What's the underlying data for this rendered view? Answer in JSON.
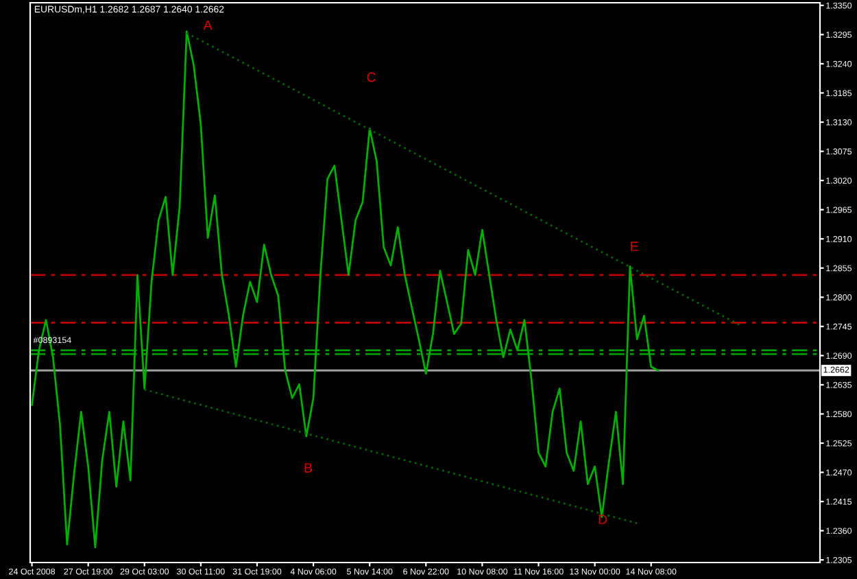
{
  "chart_data": {
    "type": "line",
    "title": "EURUSDm,H1 1.2682 1.2687 1.2640 1.2662",
    "categories": [
      "24 Oct 2008",
      null,
      null,
      null,
      null,
      null,
      null,
      null,
      "27 Oct 19:00",
      null,
      null,
      null,
      null,
      null,
      null,
      null,
      "29 Oct 03:00",
      null,
      null,
      null,
      null,
      null,
      null,
      null,
      "30 Oct 11:00",
      null,
      null,
      null,
      null,
      null,
      null,
      null,
      "31 Oct 19:00",
      null,
      null,
      null,
      null,
      null,
      null,
      null,
      "4 Nov 06:00",
      null,
      null,
      null,
      null,
      null,
      null,
      null,
      "5 Nov 14:00",
      null,
      null,
      null,
      null,
      null,
      null,
      null,
      "6 Nov 22:00",
      null,
      null,
      null,
      null,
      null,
      null,
      null,
      "10 Nov 08:00",
      null,
      null,
      null,
      null,
      null,
      null,
      null,
      "11 Nov 16:00",
      null,
      null,
      null,
      null,
      null,
      null,
      null,
      "13 Nov 00:00",
      null,
      null,
      null,
      null,
      null,
      null,
      null,
      "14 Nov 08:00",
      null,
      null,
      null,
      null,
      null,
      null,
      null,
      null,
      null,
      null,
      null,
      null,
      null,
      null,
      null,
      null,
      null,
      null,
      null,
      null,
      null,
      null,
      null,
      null
    ],
    "series": [
      {
        "color": "#00b000",
        "line_style": "solid",
        "values": [
          1.2597,
          1.27,
          1.2757,
          1.2687,
          1.2558,
          1.2334,
          1.2468,
          1.2584,
          1.2481,
          1.2329,
          1.2494,
          1.2584,
          1.2443,
          1.2566,
          1.2455,
          1.2842,
          1.2628,
          1.2829,
          1.2945,
          1.2989,
          1.2842,
          1.2971,
          1.3301,
          1.3237,
          1.3126,
          1.2912,
          1.2992,
          1.2842,
          1.2765,
          1.2669,
          1.2765,
          1.2829,
          1.2791,
          1.2899,
          1.2842,
          1.2803,
          1.2662,
          1.261,
          1.2636,
          1.2538,
          1.261,
          1.2842,
          1.3023,
          1.3048,
          1.2945,
          1.2842,
          1.2945,
          1.2979,
          1.3118,
          1.3056,
          1.2894,
          1.286,
          1.2932,
          1.2842,
          1.278,
          1.272,
          1.2656,
          1.2731,
          1.285,
          1.2791,
          1.2731,
          1.275,
          1.2889,
          1.2842,
          1.2927,
          1.2842,
          1.2757,
          1.2687,
          1.2739,
          1.27,
          1.2757,
          1.2644,
          1.2507,
          1.2481,
          1.2584,
          1.2628,
          1.2507,
          1.2473,
          1.2566,
          1.2448,
          1.2481,
          1.2386,
          1.2489,
          1.2584,
          1.2448,
          1.2858,
          1.2721,
          1.2765,
          1.2669,
          1.2662,
          null,
          null,
          null,
          null,
          null,
          null,
          null,
          null,
          null,
          null,
          null,
          null,
          null,
          null,
          null,
          null,
          null,
          null,
          null,
          null,
          null,
          null,
          null
        ]
      },
      {
        "color": "#006400",
        "line_style": "dotted",
        "values": [
          null,
          null,
          null,
          null,
          null,
          null,
          null,
          null,
          null,
          null,
          null,
          null,
          null,
          null,
          null,
          null,
          null,
          null,
          null,
          null,
          null,
          null,
          1.3298,
          null,
          null,
          null,
          null,
          null,
          null,
          null,
          null,
          null,
          null,
          null,
          null,
          null,
          null,
          null,
          null,
          null,
          null,
          null,
          null,
          null,
          null,
          null,
          null,
          null,
          null,
          null,
          null,
          null,
          null,
          null,
          null,
          null,
          null,
          null,
          null,
          null,
          null,
          null,
          null,
          null,
          null,
          null,
          null,
          null,
          null,
          null,
          null,
          null,
          null,
          null,
          null,
          null,
          null,
          null,
          null,
          null,
          null,
          null,
          null,
          null,
          null,
          null,
          null,
          null,
          null,
          null,
          null,
          null,
          null,
          null,
          null,
          null,
          null,
          null,
          null,
          null,
          null,
          1.2745,
          null,
          null,
          null,
          null,
          null,
          null,
          null,
          null,
          null,
          null,
          null
        ]
      },
      {
        "color": "#006400",
        "line_style": "dotted",
        "values": [
          null,
          null,
          null,
          null,
          null,
          null,
          null,
          null,
          null,
          null,
          null,
          null,
          null,
          null,
          null,
          null,
          1.2626,
          null,
          null,
          null,
          null,
          null,
          null,
          null,
          null,
          null,
          null,
          null,
          null,
          null,
          null,
          null,
          null,
          null,
          null,
          null,
          null,
          null,
          null,
          null,
          null,
          null,
          null,
          null,
          null,
          null,
          null,
          null,
          null,
          null,
          null,
          null,
          null,
          null,
          null,
          null,
          null,
          null,
          null,
          null,
          null,
          null,
          null,
          null,
          null,
          null,
          null,
          null,
          null,
          null,
          null,
          null,
          null,
          null,
          null,
          null,
          null,
          null,
          null,
          null,
          null,
          null,
          null,
          null,
          null,
          null,
          1.2374,
          null,
          null,
          null,
          null,
          null,
          null,
          null,
          null,
          null,
          null,
          null,
          null,
          null,
          null,
          null,
          null,
          null,
          null,
          null,
          null,
          null,
          null,
          null,
          null,
          null,
          null
        ]
      }
    ],
    "ylim": [
      1.23,
      1.3355
    ],
    "yticks": [
      {
        "value": 1.2305,
        "label": "1.2305"
      },
      {
        "value": 1.236,
        "label": "1.2360"
      },
      {
        "value": 1.2415,
        "label": "1.2415"
      },
      {
        "value": 1.247,
        "label": "1.2470"
      },
      {
        "value": 1.2525,
        "label": "1.2525"
      },
      {
        "value": 1.258,
        "label": "1.2580"
      },
      {
        "value": 1.2635,
        "label": "1.2635"
      },
      {
        "value": 1.269,
        "label": "1.2690"
      },
      {
        "value": 1.2745,
        "label": "1.2745"
      },
      {
        "value": 1.28,
        "label": "1.2800"
      },
      {
        "value": 1.2855,
        "label": "1.2855"
      },
      {
        "value": 1.291,
        "label": "1.2910"
      },
      {
        "value": 1.2965,
        "label": "1.2965"
      },
      {
        "value": 1.302,
        "label": "1.3020"
      },
      {
        "value": 1.3075,
        "label": "1.3075"
      },
      {
        "value": 1.313,
        "label": "1.3130"
      },
      {
        "value": 1.3185,
        "label": "1.3185"
      },
      {
        "value": 1.324,
        "label": "1.3240"
      },
      {
        "value": 1.3295,
        "label": "1.3295"
      },
      {
        "value": 1.335,
        "label": "1.3350"
      }
    ],
    "ref_lines": [
      {
        "axis": "y",
        "value": 1.2842,
        "color": "#c00000",
        "line_style": "dashed"
      },
      {
        "axis": "y",
        "value": 1.2752,
        "color": "#c00000",
        "line_style": "dashed"
      },
      {
        "axis": "y",
        "value": 1.27,
        "color": "#00a000",
        "line_style": "dashed"
      },
      {
        "axis": "y",
        "value": 1.2693,
        "color": "#00a000",
        "line_style": "dashed"
      },
      {
        "axis": "y",
        "value": 1.2662,
        "color": "#a0a0a0",
        "line_style": "solid",
        "label": "1.2662"
      }
    ],
    "annotations": [
      "A",
      "B",
      "C",
      "D",
      "E",
      "#0893154"
    ],
    "grid": false,
    "legend": false
  }
}
